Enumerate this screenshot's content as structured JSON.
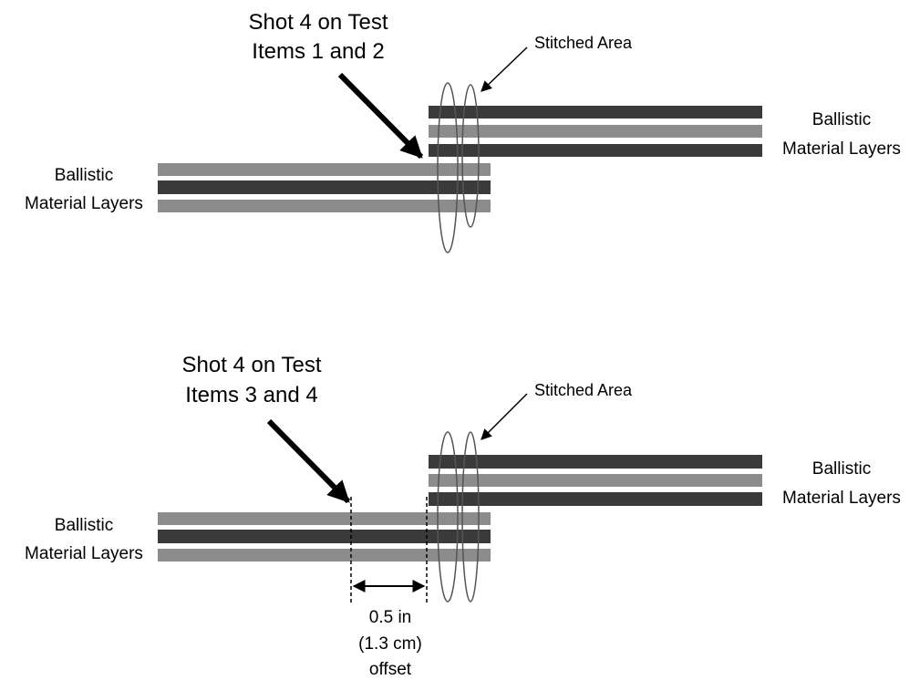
{
  "top": {
    "shot_label": [
      "Shot 4 on Test",
      "Items 1 and 2"
    ],
    "stitched_label": "Stitched Area",
    "left_label": [
      "Ballistic",
      "Material Layers"
    ],
    "right_label": [
      "Ballistic",
      "Material Layers"
    ]
  },
  "bottom": {
    "shot_label": [
      "Shot 4 on Test",
      "Items 3 and 4"
    ],
    "stitched_label": "Stitched Area",
    "left_label": [
      "Ballistic",
      "Material Layers"
    ],
    "right_label": [
      "Ballistic",
      "Material Layers"
    ],
    "offset_label": [
      "0.5 in",
      "(1.3 cm)",
      "offset"
    ]
  },
  "colors": {
    "dark_layer": "#3a3a3a",
    "light_layer": "#8c8c8c",
    "arrow": "#000000",
    "stitch": "#555555"
  }
}
